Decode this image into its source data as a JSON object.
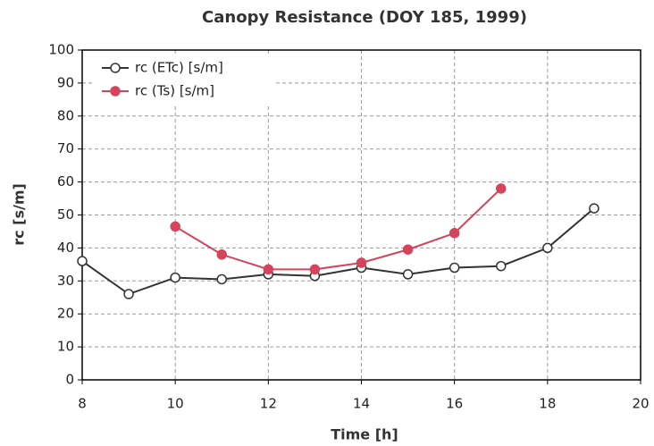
{
  "chart_data": {
    "type": "line",
    "title": "Canopy Resistance (DOY 185, 1999)",
    "x_label": "Time [h]",
    "y_label": "rc [s/m]",
    "x": [
      8,
      9,
      10,
      11,
      12,
      13,
      14,
      15,
      16,
      17,
      18,
      19
    ],
    "series": [
      {
        "name": "rc (ETc) [s/m]",
        "color": "#333333",
        "marker": "open",
        "values": [
          36,
          26,
          31,
          30.5,
          32,
          31.5,
          34,
          32,
          34,
          34.5,
          40,
          52
        ]
      },
      {
        "name": "rc (Ts) [s/m]",
        "color": "#d6435c",
        "marker": "filled",
        "values": [
          null,
          null,
          46.5,
          38,
          33.5,
          33.5,
          35.5,
          39.5,
          44.5,
          58,
          null,
          null
        ]
      }
    ],
    "xlim": [
      8,
      20
    ],
    "xticks": [
      8,
      10,
      12,
      14,
      16,
      18,
      20
    ],
    "ylim": [
      0,
      100
    ],
    "yticks": [
      0,
      10,
      20,
      30,
      40,
      50,
      60,
      70,
      80,
      90,
      100
    ],
    "grid": true,
    "legend": "upper left"
  }
}
